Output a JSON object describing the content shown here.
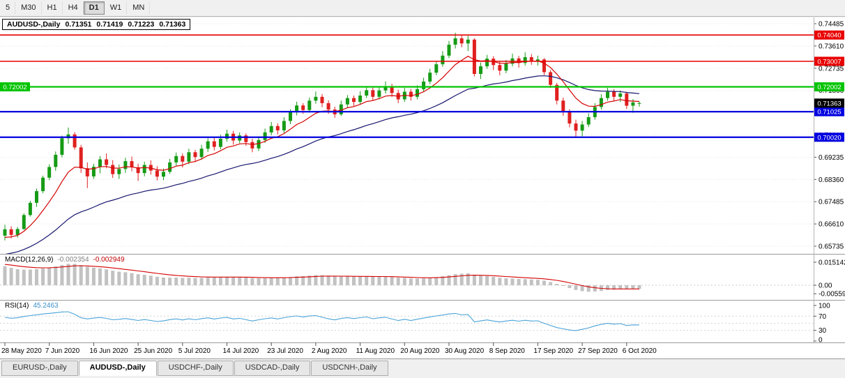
{
  "toolbar": {
    "timeframes": [
      {
        "label": "5",
        "active": false
      },
      {
        "label": "M30",
        "active": false
      },
      {
        "label": "H1",
        "active": false
      },
      {
        "label": "H4",
        "active": false
      },
      {
        "label": "D1",
        "active": true
      },
      {
        "label": "W1",
        "active": false
      },
      {
        "label": "MN",
        "active": false
      }
    ]
  },
  "chart_data": {
    "type": "candlestick",
    "symbol": "AUDUSD-,Daily",
    "current_bar": {
      "open": "0.71351",
      "high": "0.71419",
      "low": "0.71223",
      "close": "0.71363"
    },
    "y_axis": {
      "top_price": 0.74485,
      "step": 0.00875,
      "tick_labels": [
        "0.74485",
        "0.73610",
        "0.72735",
        "0.71860",
        "0.70985",
        "0.70110",
        "0.69235",
        "0.68360",
        "0.67485",
        "0.66610",
        "0.65735"
      ]
    },
    "x_axis": {
      "bars_per_label": 7,
      "labels": [
        "28 May 2020",
        "7 Jun 2020",
        "16 Jun 2020",
        "25 Jun 2020",
        "5 Jul 2020",
        "14 Jul 2020",
        "23 Jul 2020",
        "2 Aug 2020",
        "11 Aug 2020",
        "20 Aug 2020",
        "30 Aug 2020",
        "8 Sep 2020",
        "17 Sep 2020",
        "27 Sep 2020",
        "6 Oct 2020"
      ]
    },
    "h_lines": [
      {
        "price": 0.7404,
        "label": "0.74040",
        "color": "#e80000",
        "width": 1.6
      },
      {
        "price": 0.73007,
        "label": "0.73007",
        "color": "#e80000",
        "width": 1.6
      },
      {
        "price": 0.72002,
        "label": "0.72002",
        "color": "#00c400",
        "width": 2.2,
        "both_sides": true
      },
      {
        "price": 0.71025,
        "label": "0.71025",
        "color": "#0000e0",
        "width": 2.2
      },
      {
        "price": 0.7002,
        "label": "0.70020",
        "color": "#0000e0",
        "width": 2.2
      }
    ],
    "current_price": {
      "value": 0.71363,
      "label": "0.71363",
      "color": "#000000"
    },
    "indicators": {
      "macd": {
        "label": "MACD(12,26,9)",
        "value": "-0.002354",
        "signal_value": "-0.002949",
        "axis_labels": [
          "0.015142",
          "0.00",
          "-0.005595"
        ],
        "axis_values": [
          0.015142,
          0,
          -0.005595
        ]
      },
      "rsi": {
        "label": "RSI(14)",
        "value": "45.2463",
        "axis_labels": [
          "100",
          "70",
          "30",
          "0"
        ],
        "axis_values": [
          100,
          70,
          30,
          0
        ],
        "levels": [
          70,
          50,
          30
        ]
      }
    },
    "colors": {
      "up": "#169b16",
      "down": "#e02020",
      "ma_fast": "#d40000",
      "ma_slow": "#16166e",
      "macd_hist": "#c2c2c2",
      "macd_signal": "#d40000",
      "rsi_line": "#4aa3d8",
      "grid": "#e0e0e0"
    },
    "candles": [
      [
        0.6615,
        0.6658,
        0.6596,
        0.664
      ],
      [
        0.664,
        0.6652,
        0.6604,
        0.6618
      ],
      [
        0.6618,
        0.6649,
        0.6607,
        0.6641
      ],
      [
        0.6641,
        0.6703,
        0.6638,
        0.6696
      ],
      [
        0.6696,
        0.6752,
        0.669,
        0.6744
      ],
      [
        0.6744,
        0.68,
        0.6728,
        0.679
      ],
      [
        0.679,
        0.6851,
        0.6782,
        0.6843
      ],
      [
        0.6843,
        0.6896,
        0.6833,
        0.6885
      ],
      [
        0.6885,
        0.6946,
        0.687,
        0.6933
      ],
      [
        0.6933,
        0.7008,
        0.6923,
        0.6998
      ],
      [
        0.6998,
        0.704,
        0.6976,
        0.7013
      ],
      [
        0.7013,
        0.7022,
        0.6953,
        0.6962
      ],
      [
        0.6962,
        0.6972,
        0.6862,
        0.688
      ],
      [
        0.688,
        0.6903,
        0.6802,
        0.6848
      ],
      [
        0.6848,
        0.6898,
        0.6838,
        0.6886
      ],
      [
        0.6886,
        0.6928,
        0.686,
        0.6915
      ],
      [
        0.6915,
        0.6938,
        0.688,
        0.6893
      ],
      [
        0.6893,
        0.6912,
        0.6842,
        0.6857
      ],
      [
        0.6857,
        0.6895,
        0.6838,
        0.6877
      ],
      [
        0.6877,
        0.6921,
        0.6862,
        0.6908
      ],
      [
        0.6908,
        0.6926,
        0.6868,
        0.6884
      ],
      [
        0.6884,
        0.6898,
        0.683,
        0.6861
      ],
      [
        0.6861,
        0.6906,
        0.6848,
        0.6893
      ],
      [
        0.6893,
        0.6911,
        0.6855,
        0.6871
      ],
      [
        0.6871,
        0.6888,
        0.6832,
        0.6847
      ],
      [
        0.6847,
        0.6879,
        0.6833,
        0.6866
      ],
      [
        0.6866,
        0.6917,
        0.6858,
        0.6903
      ],
      [
        0.6903,
        0.6942,
        0.689,
        0.6928
      ],
      [
        0.6928,
        0.6938,
        0.6883,
        0.6906
      ],
      [
        0.6906,
        0.6957,
        0.6896,
        0.6943
      ],
      [
        0.6943,
        0.6952,
        0.6904,
        0.6924
      ],
      [
        0.6924,
        0.6972,
        0.6914,
        0.6957
      ],
      [
        0.6957,
        0.6998,
        0.6944,
        0.6986
      ],
      [
        0.6986,
        0.7002,
        0.695,
        0.6964
      ],
      [
        0.6964,
        0.7012,
        0.6954,
        0.6996
      ],
      [
        0.6996,
        0.7032,
        0.6985,
        0.7016
      ],
      [
        0.7016,
        0.7027,
        0.6973,
        0.6989
      ],
      [
        0.6989,
        0.7021,
        0.6979,
        0.7009
      ],
      [
        0.7009,
        0.7017,
        0.6968,
        0.6983
      ],
      [
        0.6983,
        0.6996,
        0.6943,
        0.6958
      ],
      [
        0.6958,
        0.7006,
        0.6948,
        0.6991
      ],
      [
        0.6991,
        0.7036,
        0.698,
        0.7021
      ],
      [
        0.7021,
        0.7062,
        0.701,
        0.7046
      ],
      [
        0.7046,
        0.7057,
        0.7013,
        0.7029
      ],
      [
        0.7029,
        0.7081,
        0.7019,
        0.7066
      ],
      [
        0.7066,
        0.7112,
        0.7054,
        0.7101
      ],
      [
        0.7101,
        0.7142,
        0.7088,
        0.7127
      ],
      [
        0.7127,
        0.7136,
        0.7094,
        0.7109
      ],
      [
        0.7109,
        0.7158,
        0.7099,
        0.7146
      ],
      [
        0.7146,
        0.7182,
        0.7134,
        0.7161
      ],
      [
        0.7161,
        0.7172,
        0.712,
        0.7136
      ],
      [
        0.7136,
        0.7147,
        0.7094,
        0.7111
      ],
      [
        0.7111,
        0.7122,
        0.7078,
        0.7092
      ],
      [
        0.7092,
        0.7146,
        0.7086,
        0.7131
      ],
      [
        0.7131,
        0.7168,
        0.7117,
        0.7156
      ],
      [
        0.7156,
        0.7166,
        0.7124,
        0.7141
      ],
      [
        0.7141,
        0.7183,
        0.713,
        0.7166
      ],
      [
        0.7166,
        0.7202,
        0.7156,
        0.7187
      ],
      [
        0.7187,
        0.7197,
        0.7146,
        0.7161
      ],
      [
        0.7161,
        0.7201,
        0.7151,
        0.7186
      ],
      [
        0.7186,
        0.7222,
        0.7174,
        0.7202
      ],
      [
        0.7202,
        0.7212,
        0.716,
        0.7176
      ],
      [
        0.7176,
        0.7189,
        0.7136,
        0.7151
      ],
      [
        0.7151,
        0.7196,
        0.7141,
        0.7181
      ],
      [
        0.7181,
        0.7192,
        0.7146,
        0.7161
      ],
      [
        0.7161,
        0.7206,
        0.7151,
        0.7191
      ],
      [
        0.7191,
        0.7236,
        0.7181,
        0.7221
      ],
      [
        0.7221,
        0.7271,
        0.7211,
        0.7256
      ],
      [
        0.7256,
        0.7301,
        0.7246,
        0.7289
      ],
      [
        0.7289,
        0.7341,
        0.7279,
        0.7323
      ],
      [
        0.7323,
        0.7381,
        0.7313,
        0.7366
      ],
      [
        0.7366,
        0.7413,
        0.7351,
        0.7391
      ],
      [
        0.7391,
        0.7406,
        0.7356,
        0.7371
      ],
      [
        0.7371,
        0.7401,
        0.7341,
        0.7386
      ],
      [
        0.7386,
        0.7391,
        0.7241,
        0.7251
      ],
      [
        0.7251,
        0.7296,
        0.7231,
        0.7281
      ],
      [
        0.7281,
        0.7326,
        0.7271,
        0.7311
      ],
      [
        0.7311,
        0.7321,
        0.7266,
        0.7286
      ],
      [
        0.7286,
        0.7301,
        0.7246,
        0.7264
      ],
      [
        0.7264,
        0.7306,
        0.7254,
        0.7291
      ],
      [
        0.7291,
        0.7331,
        0.7281,
        0.7312
      ],
      [
        0.7312,
        0.7322,
        0.7276,
        0.7294
      ],
      [
        0.7294,
        0.7336,
        0.7284,
        0.7317
      ],
      [
        0.7317,
        0.7329,
        0.7287,
        0.7303
      ],
      [
        0.7303,
        0.7323,
        0.7284,
        0.7308
      ],
      [
        0.7308,
        0.7313,
        0.7247,
        0.7258
      ],
      [
        0.7258,
        0.7266,
        0.7196,
        0.7208
      ],
      [
        0.7208,
        0.7216,
        0.7131,
        0.7146
      ],
      [
        0.7146,
        0.7158,
        0.7086,
        0.7102
      ],
      [
        0.7102,
        0.7112,
        0.7041,
        0.7056
      ],
      [
        0.7056,
        0.7071,
        0.7004,
        0.7028
      ],
      [
        0.7028,
        0.7066,
        0.7006,
        0.7052
      ],
      [
        0.7052,
        0.7096,
        0.7042,
        0.7081
      ],
      [
        0.7081,
        0.7136,
        0.7071,
        0.7121
      ],
      [
        0.7121,
        0.7171,
        0.7111,
        0.7156
      ],
      [
        0.7156,
        0.7196,
        0.7146,
        0.7181
      ],
      [
        0.7181,
        0.7191,
        0.7146,
        0.7161
      ],
      [
        0.7161,
        0.7186,
        0.7141,
        0.7174
      ],
      [
        0.7174,
        0.7181,
        0.7113,
        0.7126
      ],
      [
        0.7126,
        0.7152,
        0.7098,
        0.7139
      ],
      [
        0.71351,
        0.71419,
        0.71223,
        0.71363
      ]
    ]
  },
  "tabs": [
    {
      "label": "EURUSD-,Daily",
      "active": false
    },
    {
      "label": "AUDUSD-,Daily",
      "active": true
    },
    {
      "label": "USDCHF-,Daily",
      "active": false
    },
    {
      "label": "USDCAD-,Daily",
      "active": false
    },
    {
      "label": "USDCNH-,Daily",
      "active": false
    }
  ]
}
